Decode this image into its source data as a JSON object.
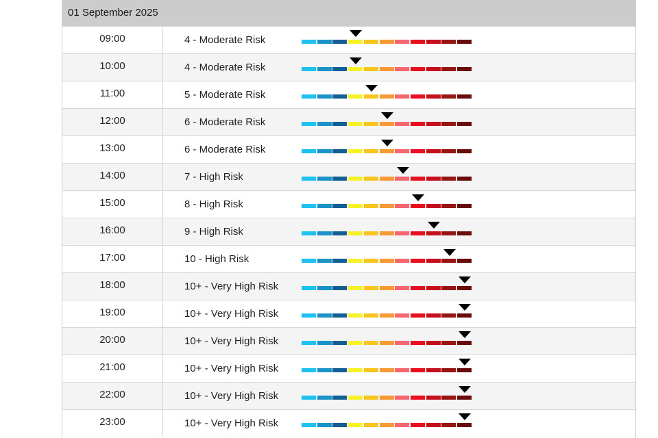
{
  "date": "01 September 2025",
  "scale_colors": [
    "#1ec2ef",
    "#1b93c9",
    "#145e96",
    "#f7f12a",
    "#f7c51d",
    "#f79a33",
    "#f7666e",
    "#e8101e",
    "#c50f1b",
    "#971414",
    "#6a0b0b"
  ],
  "rows": [
    {
      "time": "09:00",
      "label": "4 - Moderate Risk",
      "level": 4
    },
    {
      "time": "10:00",
      "label": "4 - Moderate Risk",
      "level": 4
    },
    {
      "time": "11:00",
      "label": "5 - Moderate Risk",
      "level": 5
    },
    {
      "time": "12:00",
      "label": "6 - Moderate Risk",
      "level": 6
    },
    {
      "time": "13:00",
      "label": "6 - Moderate Risk",
      "level": 6
    },
    {
      "time": "14:00",
      "label": "7 - High Risk",
      "level": 7
    },
    {
      "time": "15:00",
      "label": "8 - High Risk",
      "level": 8
    },
    {
      "time": "16:00",
      "label": "9 - High Risk",
      "level": 9
    },
    {
      "time": "17:00",
      "label": "10 - High Risk",
      "level": 10
    },
    {
      "time": "18:00",
      "label": "10+ - Very High Risk",
      "level": 11
    },
    {
      "time": "19:00",
      "label": "10+ - Very High Risk",
      "level": 11
    },
    {
      "time": "20:00",
      "label": "10+ - Very High Risk",
      "level": 11
    },
    {
      "time": "21:00",
      "label": "10+ - Very High Risk",
      "level": 11
    },
    {
      "time": "22:00",
      "label": "10+ - Very High Risk",
      "level": 11
    },
    {
      "time": "23:00",
      "label": "10+ - Very High Risk",
      "level": 11
    }
  ]
}
